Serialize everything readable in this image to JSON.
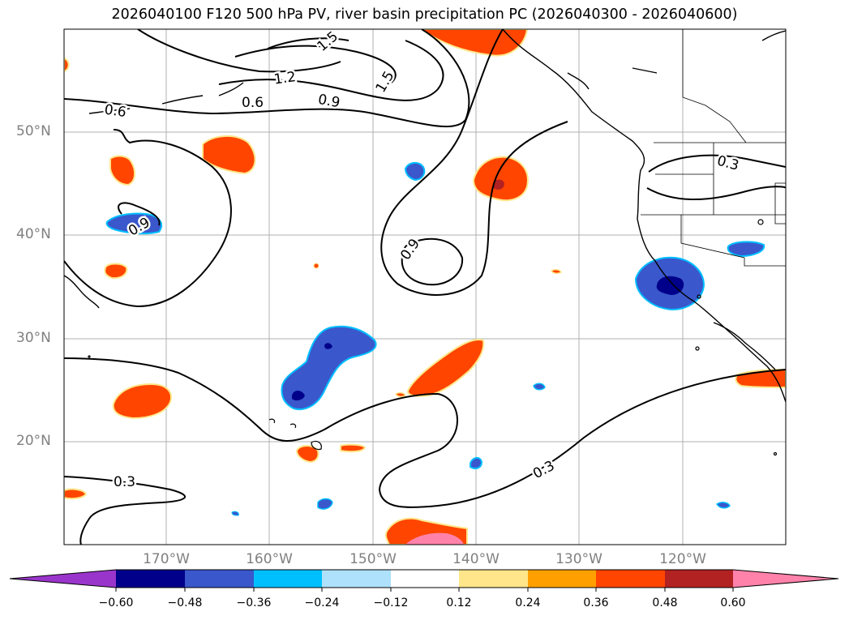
{
  "title": "2026040100 F120 500 hPa PV, river basin precipitation PC (2026040300 - 2026040600)",
  "map": {
    "latitude_labels": [
      "50°N",
      "40°N",
      "30°N",
      "20°N"
    ],
    "longitude_labels": [
      "170°W",
      "160°W",
      "150°W",
      "140°W",
      "130°W",
      "120°W"
    ],
    "contour_labels": [
      "0.6",
      "1.2",
      "0.6",
      "0.9",
      "1.5",
      "1.5",
      "0.9",
      "0.9",
      "0.3",
      "0.3",
      "0.3"
    ]
  },
  "colorbar": {
    "ticks": [
      "−0.60",
      "−0.48",
      "−0.36",
      "−0.24",
      "−0.12",
      "0.12",
      "0.24",
      "0.36",
      "0.48",
      "0.60"
    ],
    "colors": [
      "#9a35cc",
      "#00008b",
      "#3a57cc",
      "#00bfff",
      "#aee1fb",
      "#ffffff",
      "#ffe68a",
      "#ffa000",
      "#ff4500",
      "#b22222",
      "#ff82ab"
    ]
  },
  "colors": {
    "grid": "#b0b0b0",
    "coast": "#000000",
    "axis_label": "#808080"
  }
}
